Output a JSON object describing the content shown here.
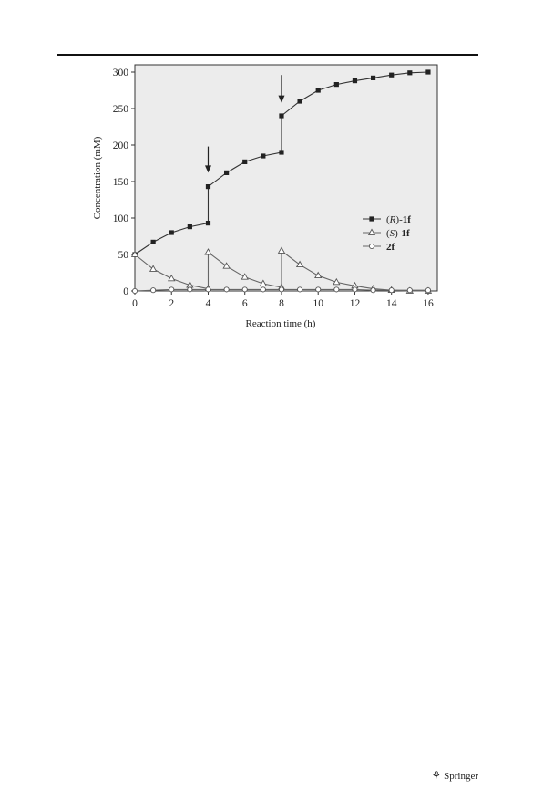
{
  "chart_data": {
    "type": "line",
    "title": "",
    "xlabel": "Reaction time (h)",
    "ylabel": "Concentration (mM)",
    "xlim": [
      0,
      16.5
    ],
    "ylim": [
      0,
      310
    ],
    "xticks": [
      0,
      2,
      4,
      6,
      8,
      10,
      12,
      14,
      16
    ],
    "yticks": [
      0,
      50,
      100,
      150,
      200,
      250,
      300
    ],
    "grid": false,
    "legend_position": "right",
    "annotations": [
      {
        "type": "arrow",
        "x": 4,
        "y_from": 198,
        "y_to": 162
      },
      {
        "type": "arrow",
        "x": 8,
        "y_from": 296,
        "y_to": 258
      }
    ],
    "series": [
      {
        "name_prefix": "(",
        "name_italic": "R",
        "name_mid": ")-",
        "name_bold": "1f",
        "marker": "filled-square",
        "x": [
          0,
          1,
          2,
          3,
          4,
          4,
          5,
          6,
          7,
          8,
          8,
          9,
          10,
          11,
          12,
          13,
          14,
          15,
          16
        ],
        "y": [
          50,
          67,
          80,
          88,
          93,
          143,
          162,
          177,
          185,
          190,
          240,
          260,
          275,
          283,
          288,
          292,
          296,
          299,
          300
        ]
      },
      {
        "name_prefix": "(",
        "name_italic": "S",
        "name_mid": ")-",
        "name_bold": "1f",
        "marker": "open-triangle",
        "x": [
          0,
          1,
          2,
          3,
          4,
          4,
          5,
          6,
          7,
          8,
          8,
          9,
          10,
          11,
          12,
          13,
          14,
          15,
          16
        ],
        "y": [
          50,
          30,
          17,
          8,
          3,
          53,
          34,
          19,
          10,
          5,
          55,
          36,
          21,
          12,
          7,
          3,
          1,
          0,
          0
        ]
      },
      {
        "name_prefix": "",
        "name_italic": "",
        "name_mid": "",
        "name_bold": "2f",
        "marker": "open-circle",
        "x": [
          0,
          1,
          2,
          3,
          4,
          5,
          6,
          7,
          8,
          9,
          10,
          11,
          12,
          13,
          14,
          15,
          16
        ],
        "y": [
          0,
          1,
          2,
          2,
          2,
          2,
          2,
          2,
          2,
          2,
          2,
          2,
          2,
          1,
          1,
          1,
          1
        ]
      }
    ]
  },
  "footer": {
    "logo_glyph": "⚘",
    "publisher": "Springer"
  }
}
